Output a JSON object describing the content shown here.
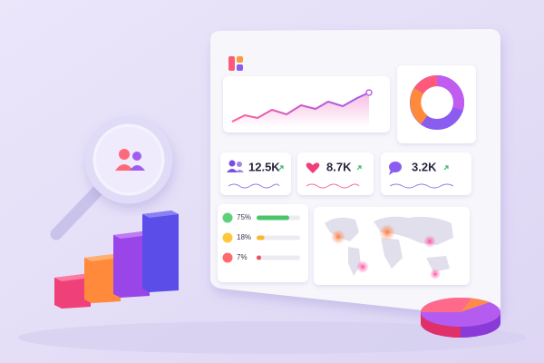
{
  "stats": [
    {
      "value": "12.5K"
    },
    {
      "value": "8.7K"
    },
    {
      "value": "3.2K"
    }
  ],
  "sentiment": [
    {
      "value": 75,
      "label": "75%"
    },
    {
      "value": 18,
      "label": "18%"
    },
    {
      "value": 7,
      "label": "7%"
    }
  ]
}
